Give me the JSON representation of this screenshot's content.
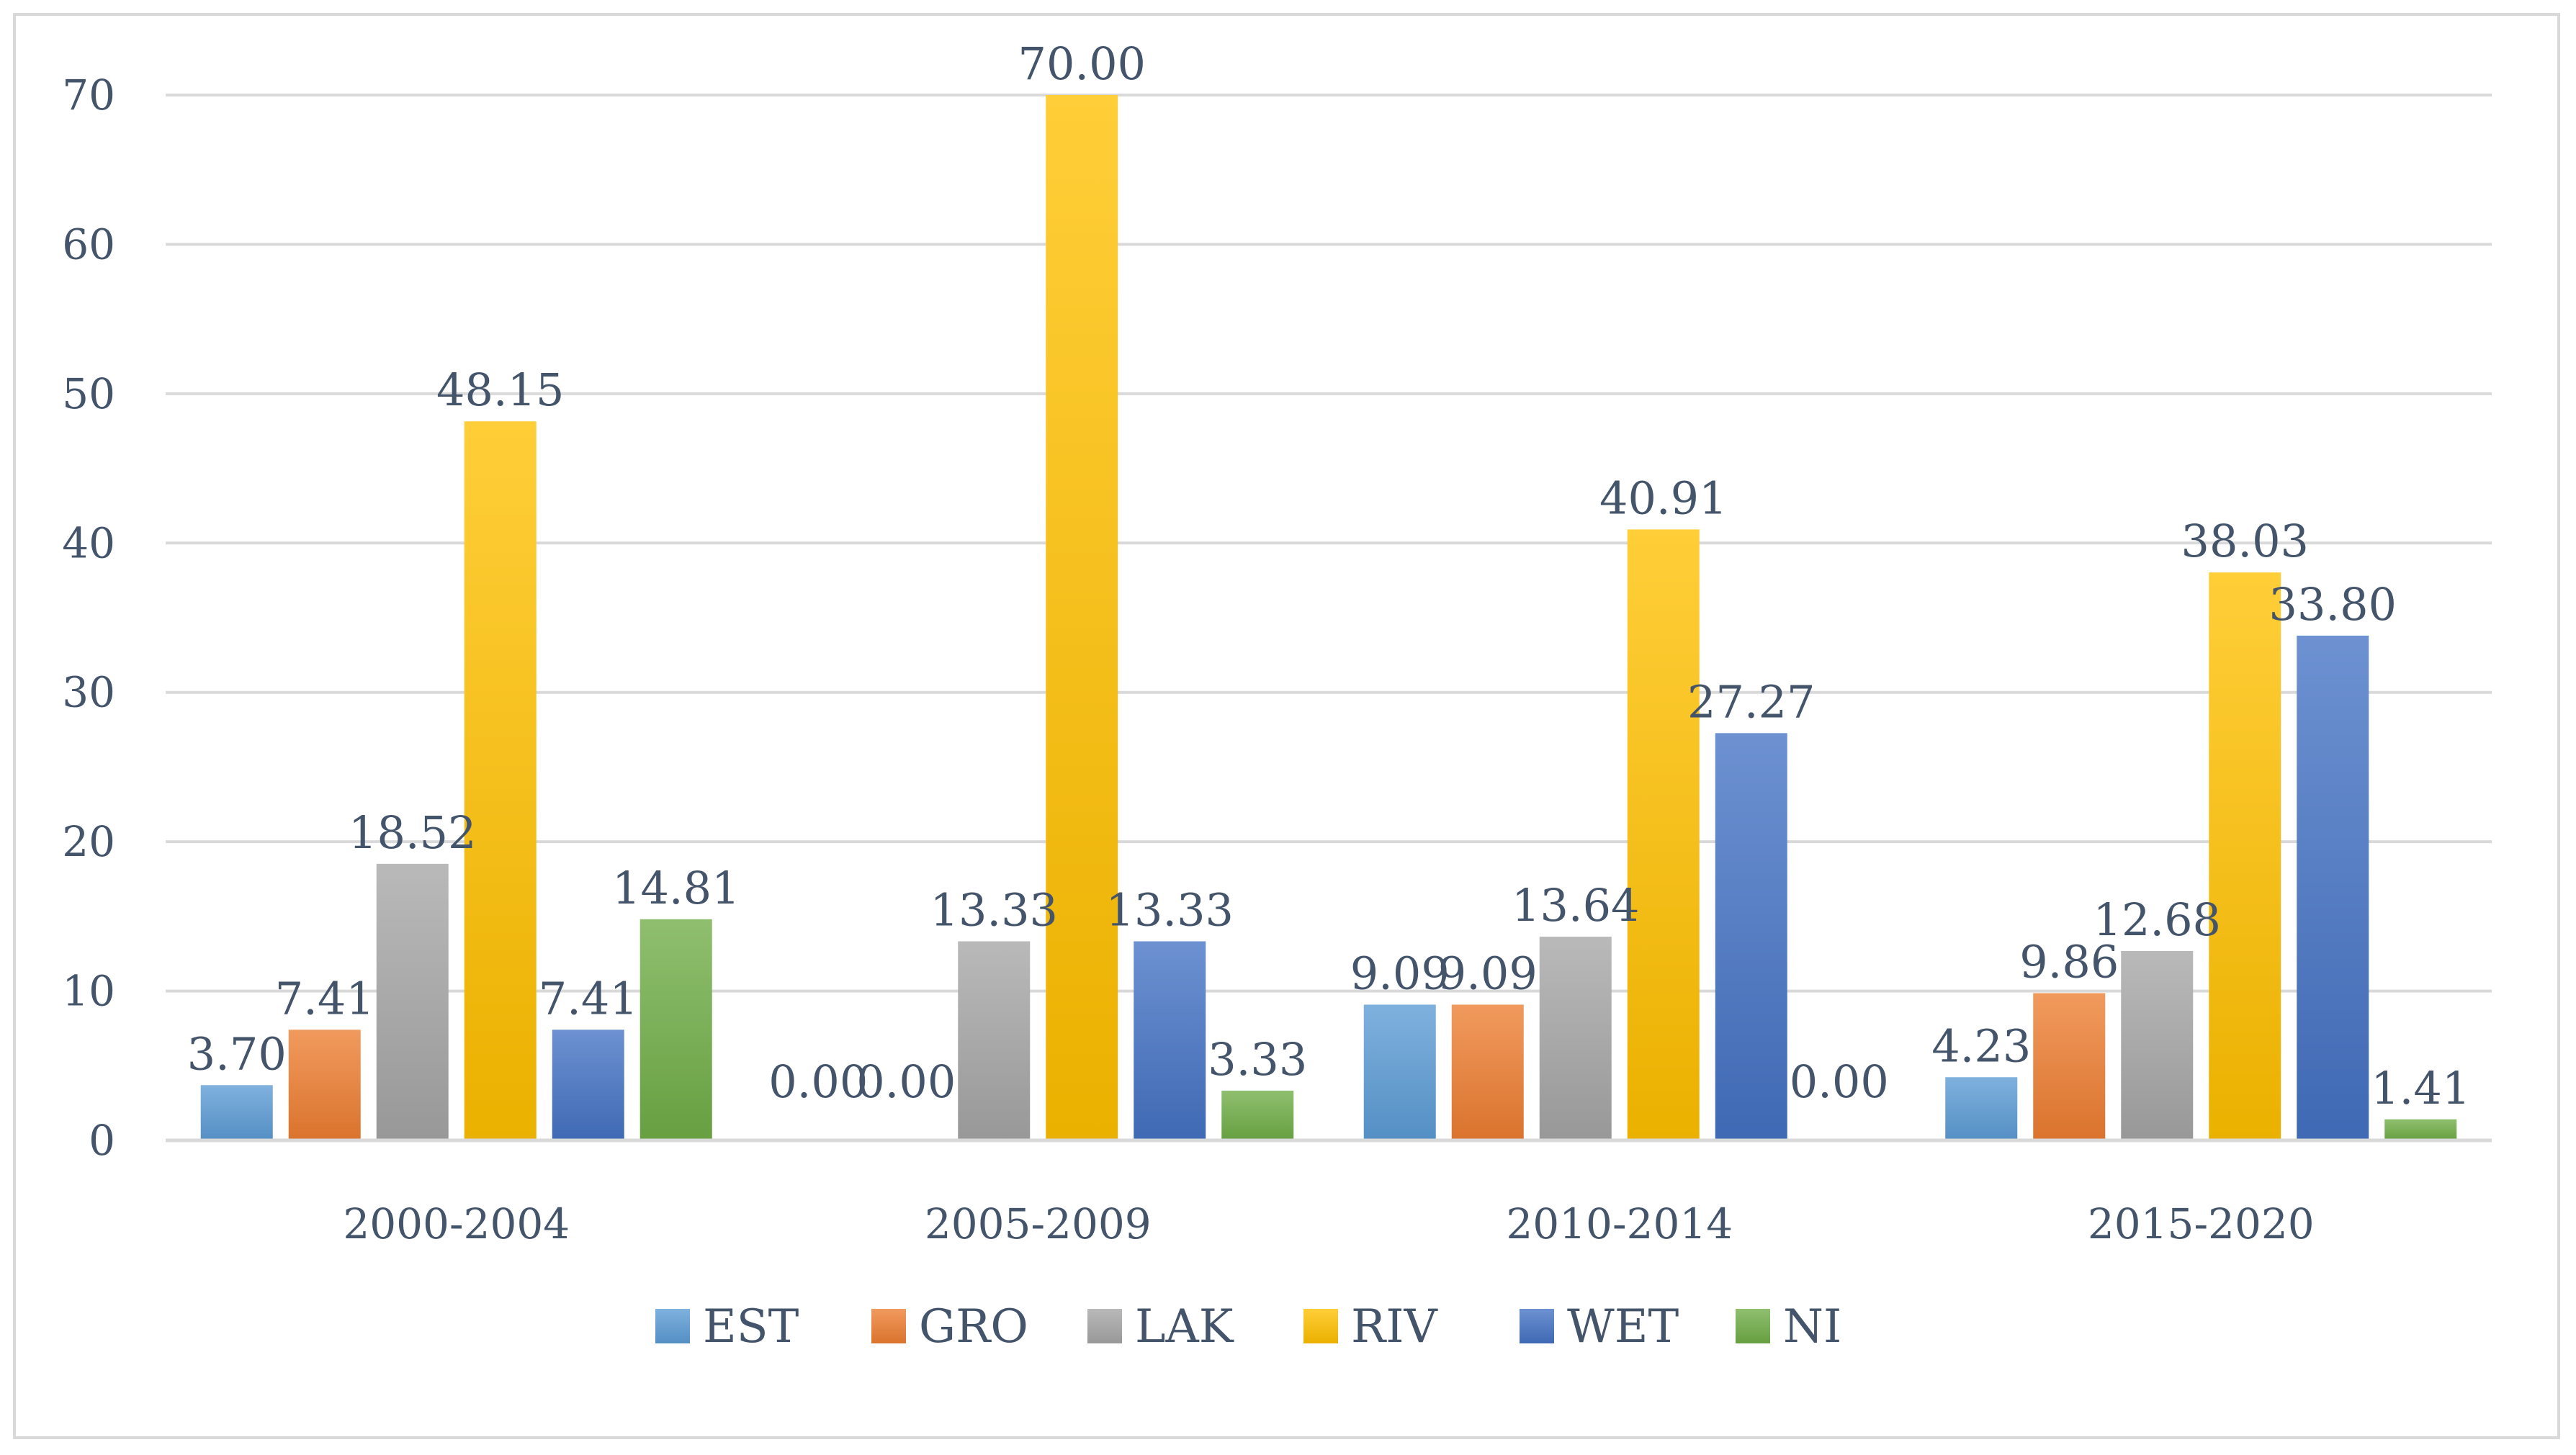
{
  "chart_data": {
    "type": "bar",
    "title": "",
    "xlabel": "",
    "ylabel": "",
    "ylim": [
      0,
      70
    ],
    "yticks": [
      0,
      10,
      20,
      30,
      40,
      50,
      60,
      70
    ],
    "grid": true,
    "legend_position": "bottom",
    "categories": [
      "2000-2004",
      "2005-2009",
      "2010-2014",
      "2015-2020"
    ],
    "series": [
      {
        "name": "EST",
        "color": "#5b9bd5",
        "values": [
          3.7,
          0.0,
          9.09,
          4.23
        ],
        "labels": [
          "3.70",
          "0.00",
          "9.09",
          "4.23"
        ]
      },
      {
        "name": "GRO",
        "color": "#ed7d31",
        "values": [
          7.41,
          0.0,
          9.09,
          9.86
        ],
        "labels": [
          "7.41",
          "0.00",
          "9.09",
          "9.86"
        ]
      },
      {
        "name": "LAK",
        "color": "#a5a5a5",
        "values": [
          18.52,
          13.33,
          13.64,
          12.68
        ],
        "labels": [
          "18.52",
          "13.33",
          "13.64",
          "12.68"
        ]
      },
      {
        "name": "RIV",
        "color": "#ffc000",
        "values": [
          48.15,
          70.0,
          40.91,
          38.03
        ],
        "labels": [
          "48.15",
          "70.00",
          "40.91",
          "38.03"
        ]
      },
      {
        "name": "WET",
        "color": "#4472c4",
        "values": [
          7.41,
          13.33,
          27.27,
          33.8
        ],
        "labels": [
          "7.41",
          "13.33",
          "27.27",
          "33.80"
        ]
      },
      {
        "name": "NI",
        "color": "#70ad47",
        "values": [
          14.81,
          3.33,
          0.0,
          1.41
        ],
        "labels": [
          "14.81",
          "3.33",
          "0.00",
          "1.41"
        ]
      }
    ]
  }
}
